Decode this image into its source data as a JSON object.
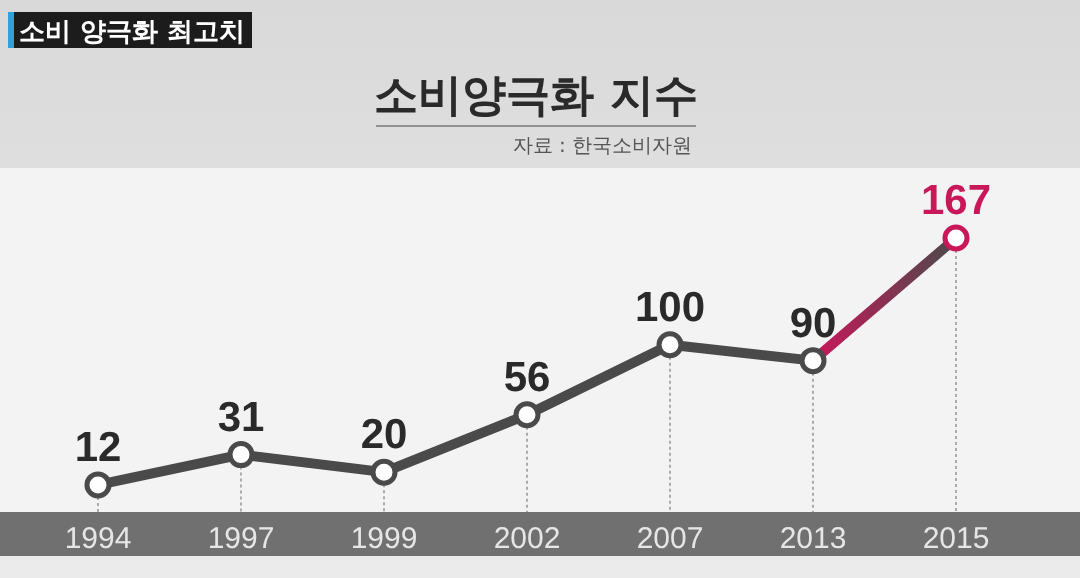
{
  "chart_data": {
    "type": "line",
    "title": "소비양극화 지수",
    "annotations": [
      "소비 양극화 최고치",
      "자료 : 한국소비자원"
    ],
    "categories": [
      "1994",
      "1997",
      "1999",
      "2002",
      "2007",
      "2013",
      "2015"
    ],
    "values": [
      12,
      31,
      20,
      56,
      100,
      90,
      167
    ],
    "colors": [
      "#4a4a4a",
      "#4a4a4a",
      "#4a4a4a",
      "#4a4a4a",
      "#4a4a4a",
      "#4a4a4a",
      "#c8185a"
    ],
    "marker": "circle",
    "data_labels": true,
    "grid": "x"
  }
}
